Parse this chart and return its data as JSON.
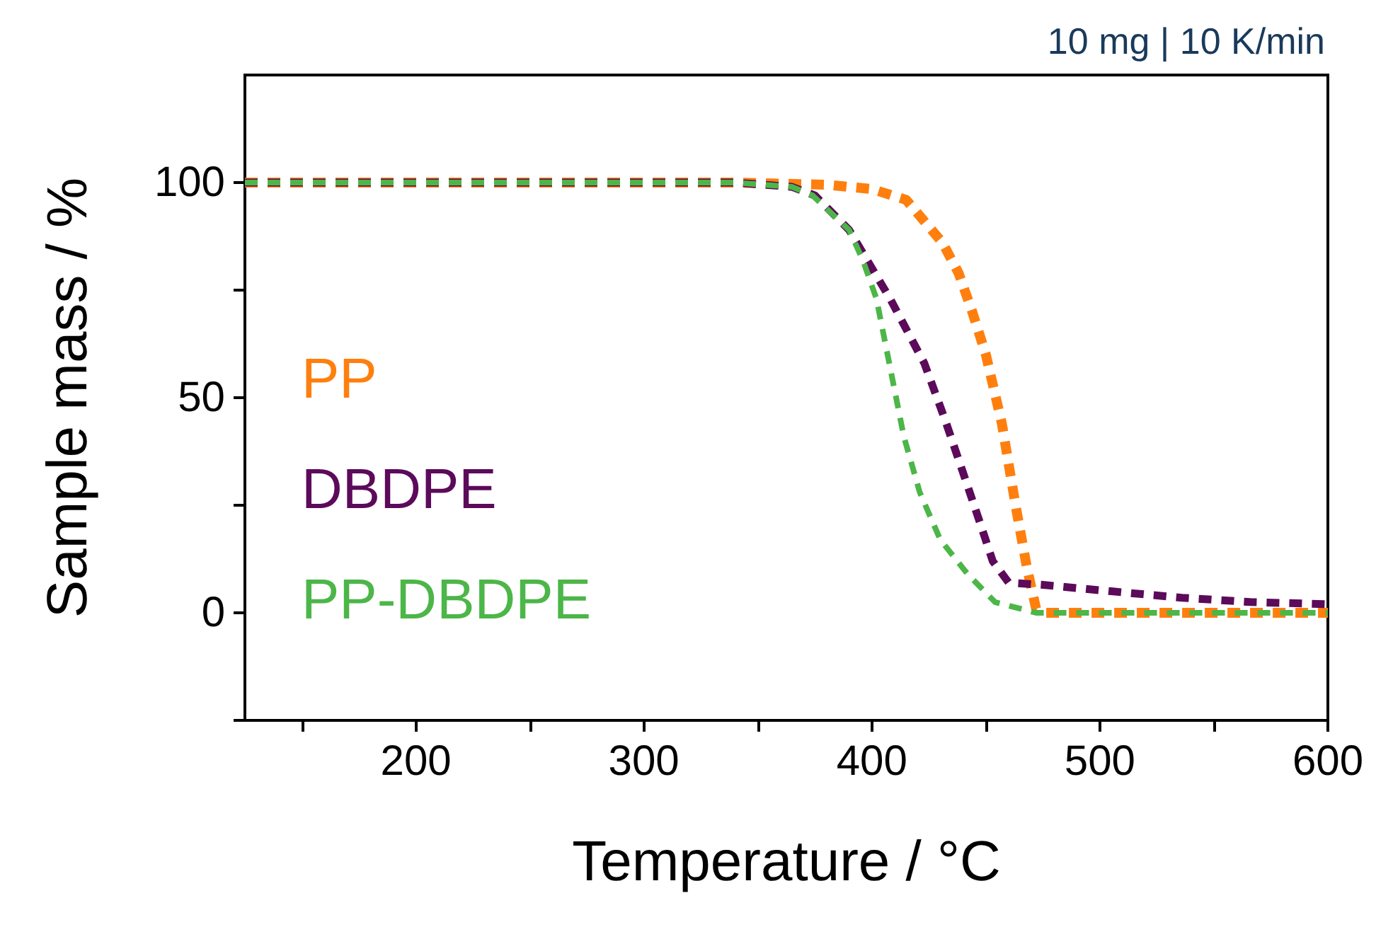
{
  "chart_data": {
    "type": "line",
    "xlabel": "Temperature / °C",
    "ylabel": "Sample mass / %",
    "annotations": [
      "10 mg | 10 K/min"
    ],
    "xlim": [
      125,
      600
    ],
    "xticks": [
      {
        "value": 150,
        "label": null
      },
      200,
      {
        "value": 250,
        "label": null
      },
      300,
      {
        "value": 350,
        "label": null
      },
      400,
      {
        "value": 450,
        "label": null
      },
      500,
      {
        "value": 550,
        "label": null
      },
      600
    ],
    "ylim": [
      -25,
      125
    ],
    "yticks": [
      {
        "value": -25,
        "label": null
      },
      0,
      {
        "value": 25,
        "label": null
      },
      50,
      {
        "value": 75,
        "label": null
      },
      100
    ],
    "grid": false,
    "legend": "left",
    "marker": "none",
    "line_style": "dashed",
    "series": [
      {
        "name": "PP",
        "color": "#ff7f0e",
        "x": [
          125,
          340,
          380,
          400,
          415,
          423,
          431,
          438,
          444,
          450,
          457,
          463,
          468,
          472,
          476,
          500,
          550,
          600
        ],
        "values": [
          100,
          100,
          99.5,
          98.5,
          96,
          91,
          86,
          79,
          70,
          60,
          44,
          25,
          10.5,
          1,
          0,
          0,
          0,
          0
        ]
      },
      {
        "name": "DBDPE",
        "color": "#5c0a5a",
        "x": [
          125,
          340,
          365,
          375,
          390,
          408,
          423,
          432,
          441,
          448,
          453,
          460,
          475,
          505,
          536,
          566,
          600
        ],
        "values": [
          100,
          100,
          99,
          97,
          89,
          73,
          58,
          45,
          31,
          20,
          12,
          7,
          6.5,
          5,
          3.5,
          2.5,
          2
        ]
      },
      {
        "name": "PP-DBDPE",
        "color": "#4cb648",
        "x": [
          125,
          340,
          365,
          374,
          390,
          396,
          402,
          408,
          414,
          421,
          430,
          442,
          454,
          472,
          500,
          550,
          600
        ],
        "values": [
          100,
          100,
          99,
          97,
          89,
          82,
          73,
          57,
          41,
          28,
          17,
          9,
          2.5,
          0,
          0,
          0,
          0
        ]
      }
    ]
  }
}
